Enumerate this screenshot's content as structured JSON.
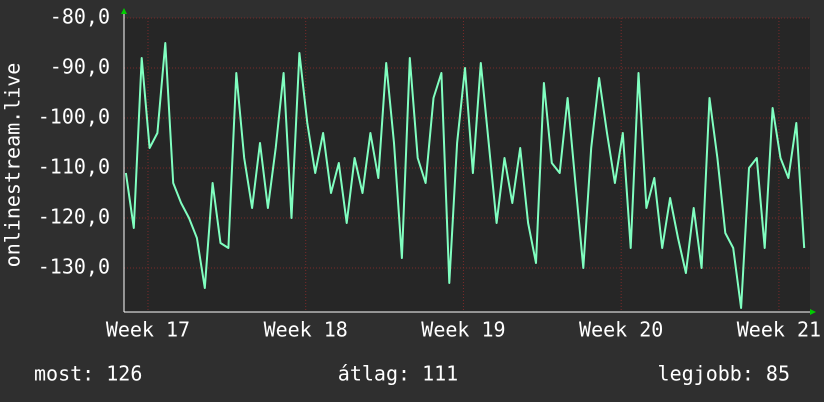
{
  "chart_data": {
    "type": "line",
    "ylabel": "onlinestream.live",
    "xlim": [
      16.848,
      21.197
    ],
    "xticks": [
      {
        "value": 17,
        "label": "Week 17"
      },
      {
        "value": 18,
        "label": "Week 18"
      },
      {
        "value": 19,
        "label": "Week 19"
      },
      {
        "value": 20,
        "label": "Week 20"
      },
      {
        "value": 21,
        "label": "Week 21"
      }
    ],
    "ylim": [
      -138.8,
      -80
    ],
    "yticks": [
      {
        "value": -80,
        "label": "-80,0"
      },
      {
        "value": -90,
        "label": "-90,0"
      },
      {
        "value": -100,
        "label": "-100,0"
      },
      {
        "value": -110,
        "label": "-110,0"
      },
      {
        "value": -120,
        "label": "-120,0"
      },
      {
        "value": -130,
        "label": "-130,0"
      }
    ],
    "grid": true,
    "color": "#80ffc0",
    "x": [
      16.86,
      16.91,
      16.96,
      17.01,
      17.06,
      17.11,
      17.16,
      17.21,
      17.26,
      17.31,
      17.36,
      17.41,
      17.46,
      17.51,
      17.56,
      17.61,
      17.66,
      17.71,
      17.76,
      17.81,
      17.86,
      17.91,
      17.96,
      18.01,
      18.06,
      18.11,
      18.16,
      18.21,
      18.26,
      18.31,
      18.36,
      18.41,
      18.46,
      18.51,
      18.56,
      18.61,
      18.66,
      18.71,
      18.76,
      18.81,
      18.86,
      18.91,
      18.96,
      19.01,
      19.06,
      19.11,
      19.16,
      19.21,
      19.26,
      19.31,
      19.36,
      19.41,
      19.46,
      19.51,
      19.56,
      19.61,
      19.66,
      19.71,
      19.76,
      19.81,
      19.86,
      19.91,
      19.96,
      20.01,
      20.06,
      20.11,
      20.16,
      20.21,
      20.26,
      20.31,
      20.36,
      20.41,
      20.46,
      20.51,
      20.56,
      20.61,
      20.66,
      20.71,
      20.76,
      20.81,
      20.86,
      20.91,
      20.96,
      21.01,
      21.06,
      21.11,
      21.16
    ],
    "values": [
      -111,
      -122,
      -88,
      -106,
      -103,
      -85,
      -113,
      -117,
      -120,
      -124,
      -134,
      -113,
      -125,
      -126,
      -91,
      -108,
      -118,
      -105,
      -118,
      -106,
      -91,
      -120,
      -87,
      -101,
      -111,
      -103,
      -115,
      -109,
      -121,
      -108,
      -115,
      -103,
      -112,
      -89,
      -105,
      -128,
      -88,
      -108,
      -113,
      -96,
      -91,
      -133,
      -105,
      -90,
      -111,
      -89,
      -105,
      -121,
      -108,
      -117,
      -106,
      -121,
      -129,
      -93,
      -109,
      -111,
      -96,
      -113,
      -130,
      -106,
      -92,
      -103,
      -113,
      -103,
      -126,
      -91,
      -118,
      -112,
      -126,
      -116,
      -124,
      -131,
      -118,
      -130,
      -96,
      -108,
      -123,
      -126,
      -138,
      -110,
      -108,
      -126,
      -98,
      -108,
      -112,
      -101,
      -126
    ],
    "footer": {
      "current": "most: 126",
      "average": "átlag: 111",
      "best": "legjobb: 85"
    }
  }
}
